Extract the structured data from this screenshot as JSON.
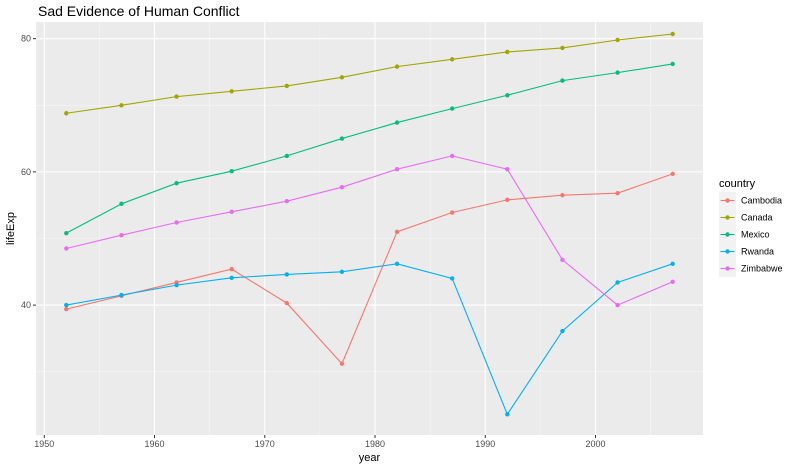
{
  "chart_data": {
    "type": "line",
    "title": "Sad Evidence of Human Conflict",
    "xlabel": "year",
    "ylabel": "lifeExp",
    "xlim": [
      1949.25,
      2009.75
    ],
    "ylim": [
      20.5,
      82.5
    ],
    "x_ticks": [
      1950,
      1960,
      1970,
      1980,
      1990,
      2000
    ],
    "y_ticks": [
      40,
      60,
      80
    ],
    "grid": true,
    "legend": {
      "title": "country",
      "position": "right"
    },
    "x": [
      1952,
      1957,
      1962,
      1967,
      1972,
      1977,
      1982,
      1987,
      1992,
      1997,
      2002,
      2007
    ],
    "series": [
      {
        "name": "Cambodia",
        "color": "#F8766D",
        "values": [
          39.4,
          41.4,
          43.4,
          45.4,
          40.3,
          31.2,
          51.0,
          53.9,
          55.8,
          56.5,
          56.8,
          59.7
        ]
      },
      {
        "name": "Canada",
        "color": "#A3A500",
        "values": [
          68.8,
          70.0,
          71.3,
          72.1,
          72.9,
          74.2,
          75.8,
          76.9,
          78.0,
          78.6,
          79.8,
          80.7
        ]
      },
      {
        "name": "Mexico",
        "color": "#00BF7D",
        "values": [
          50.8,
          55.2,
          58.3,
          60.1,
          62.4,
          65.0,
          67.4,
          69.5,
          71.5,
          73.7,
          74.9,
          76.2
        ]
      },
      {
        "name": "Rwanda",
        "color": "#00B0F6",
        "values": [
          40.0,
          41.5,
          43.0,
          44.1,
          44.6,
          45.0,
          46.2,
          44.0,
          23.6,
          36.1,
          43.4,
          46.2
        ]
      },
      {
        "name": "Zimbabwe",
        "color": "#E76BF3",
        "values": [
          48.5,
          50.5,
          52.4,
          54.0,
          55.6,
          57.7,
          60.4,
          62.4,
          60.4,
          46.8,
          40.0,
          43.5
        ]
      }
    ]
  }
}
